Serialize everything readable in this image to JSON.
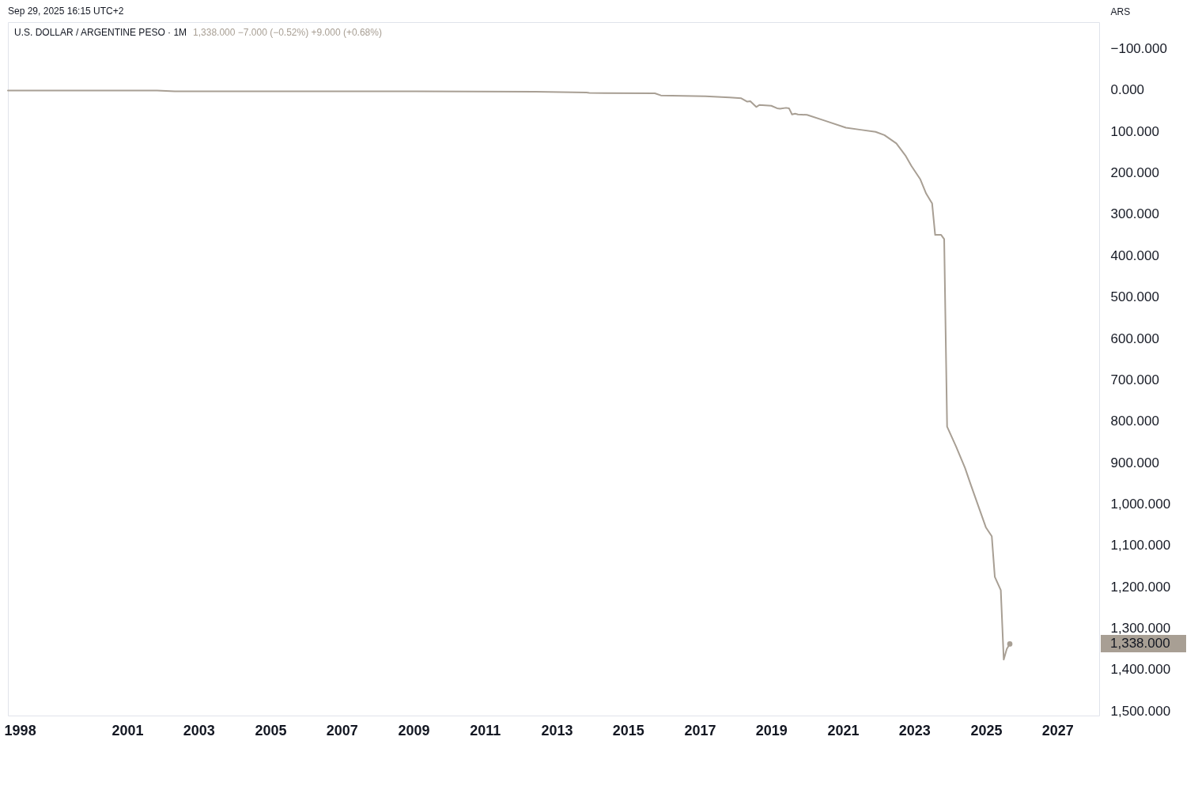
{
  "chart_data": {
    "type": "line",
    "title": "U.S. DOLLAR / ARGENTINE PESO · 1M",
    "subtitle": "1,338.000 −7.000 (−0.52%) +9.000 (+0.68%)",
    "ylabel": "ARS",
    "annotations": [
      "Sep 29, 2025 16:15 UTC+2",
      "1,338.000"
    ],
    "x": [
      "1997-09",
      "2001-11",
      "2002-05",
      "2009-02",
      "2012-06",
      "2013-11",
      "2013-12",
      "2015-10",
      "2015-12",
      "2017-03",
      "2017-11",
      "2018-03",
      "2018-05",
      "2018-06",
      "2018-08",
      "2018-09",
      "2019-01",
      "2019-03",
      "2019-04",
      "2019-06",
      "2019-07",
      "2019-08",
      "2019-09",
      "2019-10",
      "2020-01",
      "2020-07",
      "2021-02",
      "2021-07",
      "2021-12",
      "2022-03",
      "2022-07",
      "2022-10",
      "2022-12",
      "2023-03",
      "2023-05",
      "2023-07",
      "2023-08",
      "2023-10",
      "2023-11",
      "2023-12",
      "2024-03",
      "2024-06",
      "2024-08",
      "2025-01",
      "2025-03",
      "2025-04",
      "2025-06",
      "2025-07",
      "2025-08",
      "2025-09"
    ],
    "series": [
      {
        "color": "#a89f94",
        "values": [
          1,
          1,
          3,
          3,
          4,
          6,
          7,
          8,
          13,
          15,
          18,
          20,
          28,
          27,
          41,
          36,
          38,
          44,
          45,
          43,
          44,
          59,
          57,
          59,
          60,
          74,
          91,
          96,
          101,
          109,
          129,
          158,
          183,
          215,
          250,
          274,
          350,
          350,
          360,
          813,
          861,
          913,
          955,
          1057,
          1078,
          1176,
          1208,
          1376,
          1350,
          1338
        ]
      },
      {
        "type": "scatter",
        "color": "#a89f94",
        "x": [
          "2025-09"
        ],
        "values": [
          1338
        ]
      }
    ],
    "xlim": [
      "1997-09",
      "2028-03"
    ],
    "xticks": [
      "1998",
      "2001",
      "2003",
      "2005",
      "2007",
      "2009",
      "2011",
      "2013",
      "2015",
      "2017",
      "2019",
      "2021",
      "2023",
      "2025",
      "2027"
    ],
    "ylim": [
      1511,
      -164
    ],
    "yticks": [
      {
        "value": -100,
        "label": "−100.000"
      },
      {
        "value": 0,
        "label": "0.000"
      },
      {
        "value": 100,
        "label": "100.000"
      },
      {
        "value": 200,
        "label": "200.000"
      },
      {
        "value": 300,
        "label": "300.000"
      },
      {
        "value": 400,
        "label": "400.000"
      },
      {
        "value": 500,
        "label": "500.000"
      },
      {
        "value": 600,
        "label": "600.000"
      },
      {
        "value": 700,
        "label": "700.000"
      },
      {
        "value": 800,
        "label": "800.000"
      },
      {
        "value": 900,
        "label": "900.000"
      },
      {
        "value": 1000,
        "label": "1,000.000"
      },
      {
        "value": 1100,
        "label": "1,100.000"
      },
      {
        "value": 1200,
        "label": "1,200.000"
      },
      {
        "value": 1300,
        "label": "1,300.000"
      },
      {
        "value": 1400,
        "label": "1,400.000"
      },
      {
        "value": 1500,
        "label": "1,500.000"
      }
    ]
  }
}
